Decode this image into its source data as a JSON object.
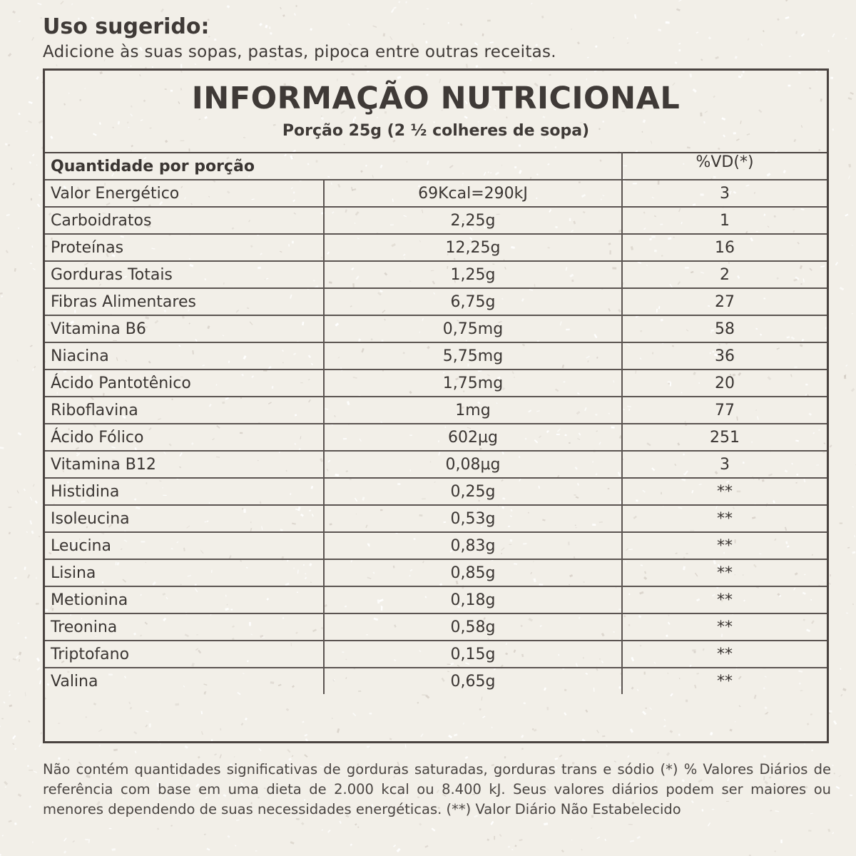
{
  "usage": {
    "title": "Uso sugerido:",
    "text": "Adicione às suas sopas, pastas, pipoca entre outras receitas."
  },
  "panel": {
    "title": "INFORMAÇÃO NUTRICIONAL",
    "subtitle": "Porção 25g (2 ½  colheres de sopa)"
  },
  "table": {
    "header_quantity": "Quantidade por porção",
    "header_vd": "%VD(*)",
    "rows": [
      {
        "name": "Valor Energético",
        "qty": "69Kcal=290kJ",
        "vd": "3"
      },
      {
        "name": "Carboidratos",
        "qty": "2,25g",
        "vd": "1"
      },
      {
        "name": "Proteínas",
        "qty": "12,25g",
        "vd": "16"
      },
      {
        "name": "Gorduras Totais",
        "qty": "1,25g",
        "vd": "2"
      },
      {
        "name": "Fibras Alimentares",
        "qty": "6,75g",
        "vd": "27"
      },
      {
        "name": "Vitamina B6",
        "qty": "0,75mg",
        "vd": "58"
      },
      {
        "name": "Niacina",
        "qty": "5,75mg",
        "vd": "36"
      },
      {
        "name": "Ácido Pantotênico",
        "qty": "1,75mg",
        "vd": "20"
      },
      {
        "name": "Riboflavina",
        "qty": "1mg",
        "vd": "77"
      },
      {
        "name": "Ácido Fólico",
        "qty": "602µg",
        "vd": "251"
      },
      {
        "name": "Vitamina B12",
        "qty": "0,08µg",
        "vd": "3"
      },
      {
        "name": "Histidina",
        "qty": "0,25g",
        "vd": "**"
      },
      {
        "name": "Isoleucina",
        "qty": "0,53g",
        "vd": "**"
      },
      {
        "name": "Leucina",
        "qty": "0,83g",
        "vd": "**"
      },
      {
        "name": "Lisina",
        "qty": "0,85g",
        "vd": "**"
      },
      {
        "name": "Metionina",
        "qty": "0,18g",
        "vd": "**"
      },
      {
        "name": "Treonina",
        "qty": "0,58g",
        "vd": "**"
      },
      {
        "name": "Triptofano",
        "qty": "0,15g",
        "vd": "**"
      },
      {
        "name": "Valina",
        "qty": "0,65g",
        "vd": "**"
      }
    ]
  },
  "footnote": "Não contém quantidades significativas de gorduras saturadas, gorduras trans e sódio (*) % Valores Diários de referência com base em uma dieta de 2.000 kcal ou 8.400 kJ. Seus valores diários podem ser maiores ou menores dependendo de suas necessidades energéticas. (**) Valor Diário Não Estabelecido",
  "colors": {
    "background": "#f2efe8",
    "text": "#3a3532",
    "border": "#4a4340",
    "speckle_light": "#ffffff",
    "speckle_dark": "#c9c1b8"
  }
}
